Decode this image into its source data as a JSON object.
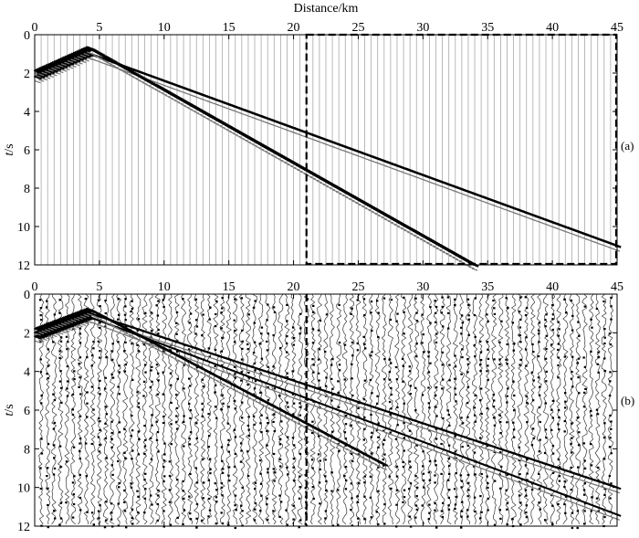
{
  "figure": {
    "xlabel": "Distance/km",
    "ylabel_italic": "t",
    "ylabel_unit": "/s"
  },
  "chart_data": [
    {
      "type": "line",
      "panel_label": "(a)",
      "x_axis": {
        "range": [
          0,
          45
        ],
        "ticks": [
          0,
          5,
          10,
          15,
          20,
          25,
          30,
          35,
          40,
          45
        ]
      },
      "y_axis": {
        "range": [
          0,
          12
        ],
        "inverted": true,
        "ticks": [
          0,
          2,
          4,
          6,
          8,
          10,
          12
        ]
      },
      "trace_spacing_km": 0.5,
      "noise": false,
      "dashed_box": {
        "x": [
          21,
          45
        ],
        "y": [
          0,
          12
        ]
      },
      "events": [
        {
          "name": "",
          "x": [
            0,
            4.3,
            45
          ],
          "y": [
            2.3,
            1.0,
            11.0
          ]
        },
        {
          "name": "",
          "x": [
            0,
            4.3,
            34
          ],
          "y": [
            2.0,
            0.7,
            12.0
          ]
        }
      ]
    },
    {
      "type": "line",
      "panel_label": "(b)",
      "x_axis": {
        "range": [
          0,
          45
        ],
        "ticks": [
          0,
          5,
          10,
          15,
          20,
          25,
          30,
          35,
          40,
          45
        ]
      },
      "y_axis": {
        "range": [
          0,
          12
        ],
        "inverted": true,
        "ticks": [
          0,
          2,
          4,
          6,
          8,
          10,
          12
        ]
      },
      "trace_spacing_km": 0.5,
      "noise": true,
      "dashed_line": {
        "x": 21
      },
      "events": [
        {
          "name": "",
          "x": [
            0,
            4.3,
            45
          ],
          "y": [
            2.1,
            1.0,
            10.0
          ]
        },
        {
          "name": "",
          "x": [
            0,
            4.3,
            45
          ],
          "y": [
            2.3,
            1.2,
            11.4
          ]
        },
        {
          "name": "",
          "x": [
            0,
            4.3,
            27
          ],
          "y": [
            1.9,
            0.8,
            8.8
          ]
        }
      ]
    }
  ]
}
